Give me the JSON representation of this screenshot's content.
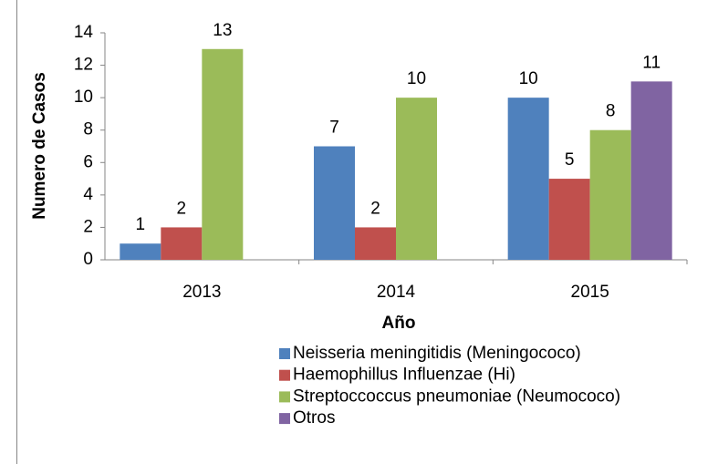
{
  "chart_data": {
    "type": "bar",
    "x_label": "Año",
    "y_label": "Numero de Casos",
    "categories": [
      "2013",
      "2014",
      "2015"
    ],
    "series": [
      {
        "name": "Neisseria meningitidis (Meningococo)",
        "color": "#4f81bd",
        "values": [
          1,
          7,
          10
        ]
      },
      {
        "name": "Haemophillus Influenzae (Hi)",
        "color": "#c0504d",
        "values": [
          2,
          2,
          5
        ]
      },
      {
        "name": "Streptoccoccus pneumoniae (Neumococo)",
        "color": "#9bbb59",
        "values": [
          13,
          10,
          8
        ]
      },
      {
        "name": "Otros",
        "color": "#8064a2",
        "values": [
          null,
          null,
          11
        ]
      }
    ],
    "ylim": [
      0,
      14
    ],
    "yticks": [
      0,
      2,
      4,
      6,
      8,
      10,
      12,
      14
    ],
    "grid": false,
    "legend": "bottom",
    "data_labels": true
  }
}
